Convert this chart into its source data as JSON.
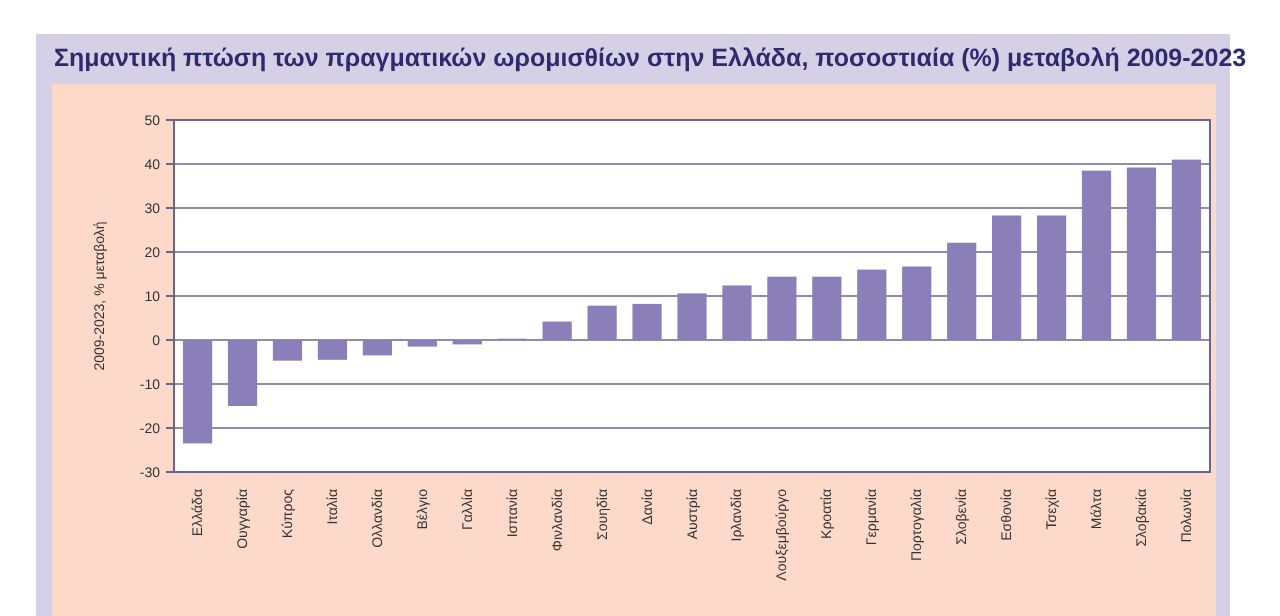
{
  "chart_data": {
    "type": "bar",
    "title": "Σημαντική πτώση των πραγματικών ωρομισθίων στην Ελλάδα, ποσοστιαία (%) μεταβολή 2009-2023",
    "ylabel": "2009-2023, % μεταβολή",
    "categories": [
      "Ελλάδα",
      "Ουγγαρία",
      "Κύπρος",
      "Ιταλία",
      "Ολλανδία",
      "Βέλγιο",
      "Γαλλία",
      "Ισπανία",
      "Φινλανδία",
      "Σουηδία",
      "Δανία",
      "Αυστρία",
      "Ιρλανδία",
      "Λουξεμβούργο",
      "Κροατία",
      "Γερμανία",
      "Πορτογαλία",
      "Σλοβενία",
      "Εσθονία",
      "Τσεχία",
      "Μάλτα",
      "Σλοβακία",
      "Πολωνία"
    ],
    "values": [
      -23.5,
      -15,
      -4.7,
      -4.5,
      -3.5,
      -1.5,
      -1,
      0.3,
      4.2,
      7.8,
      8.2,
      10.6,
      12.4,
      14.4,
      14.4,
      16,
      16.7,
      22.1,
      28.3,
      28.3,
      38.5,
      39.2,
      41
    ],
    "color": "#8b7fba",
    "ylim": [
      -30,
      50
    ],
    "yticks": [
      -30,
      -20,
      -10,
      0,
      10,
      20,
      30,
      40,
      50
    ],
    "grid": "y"
  }
}
